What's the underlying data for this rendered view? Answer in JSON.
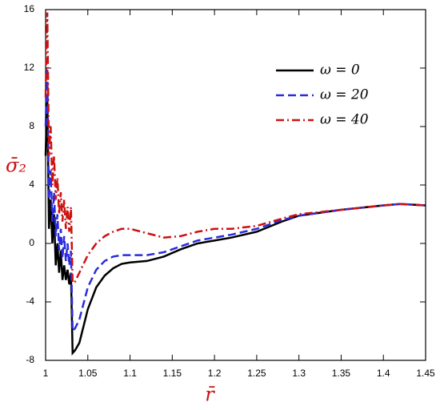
{
  "chart_data": {
    "type": "line",
    "xlabel": "r̄",
    "ylabel": "σ̄₂",
    "x": [
      1.0,
      1.002,
      1.004,
      1.006,
      1.008,
      1.01,
      1.012,
      1.014,
      1.016,
      1.018,
      1.02,
      1.022,
      1.024,
      1.026,
      1.028,
      1.03,
      1.032,
      1.035,
      1.04,
      1.05,
      1.06,
      1.07,
      1.08,
      1.09,
      1.1,
      1.12,
      1.14,
      1.16,
      1.18,
      1.2,
      1.22,
      1.25,
      1.28,
      1.3,
      1.35,
      1.4,
      1.42,
      1.45
    ],
    "series": [
      {
        "name": "ω = 0",
        "color": "#000000",
        "dash": "none",
        "values": [
          6,
          10,
          1,
          3,
          0,
          2,
          -1.5,
          0,
          -2,
          -0.5,
          -2.5,
          -1.5,
          -2.5,
          -1.8,
          -2.8,
          -2,
          -7.5,
          -7.3,
          -6.8,
          -4.5,
          -3,
          -2.2,
          -1.7,
          -1.4,
          -1.3,
          -1.2,
          -0.9,
          -0.4,
          0,
          0.2,
          0.4,
          0.8,
          1.5,
          1.9,
          2.3,
          2.6,
          2.7,
          2.6
        ]
      },
      {
        "name": "ω = 20",
        "color": "#2b2bdc",
        "dash": "10,5",
        "values": [
          8,
          12,
          3,
          5,
          1.5,
          3.5,
          0.5,
          2,
          -0.5,
          1,
          -1,
          0.5,
          -1.2,
          0,
          -1.5,
          -0.5,
          -6,
          -5.8,
          -5.2,
          -3,
          -1.8,
          -1.2,
          -0.9,
          -0.8,
          -0.8,
          -0.8,
          -0.6,
          -0.2,
          0.2,
          0.4,
          0.6,
          1,
          1.6,
          1.9,
          2.3,
          2.6,
          2.7,
          2.6
        ]
      },
      {
        "name": "ω = 40",
        "color": "#cc1111",
        "dash": "10,4,2,4",
        "values": [
          10,
          15.8,
          6,
          8,
          4,
          6,
          3,
          4.5,
          2,
          3.5,
          1.5,
          3,
          1,
          2.5,
          0.8,
          2.5,
          -2.7,
          -2.6,
          -2,
          -0.8,
          0,
          0.5,
          0.8,
          1,
          1,
          0.7,
          0.4,
          0.5,
          0.8,
          1,
          1,
          1.2,
          1.7,
          2,
          2.3,
          2.6,
          2.7,
          2.6
        ]
      }
    ],
    "xlim": [
      1,
      1.45
    ],
    "xticks": [
      1,
      1.05,
      1.1,
      1.15,
      1.2,
      1.25,
      1.3,
      1.35,
      1.4,
      1.45
    ],
    "ylim": [
      -8,
      16
    ],
    "yticks": [
      -8,
      -4,
      0,
      4,
      8,
      12,
      16
    ],
    "legend": "upper right",
    "axis_label_color": "#cc1111"
  }
}
